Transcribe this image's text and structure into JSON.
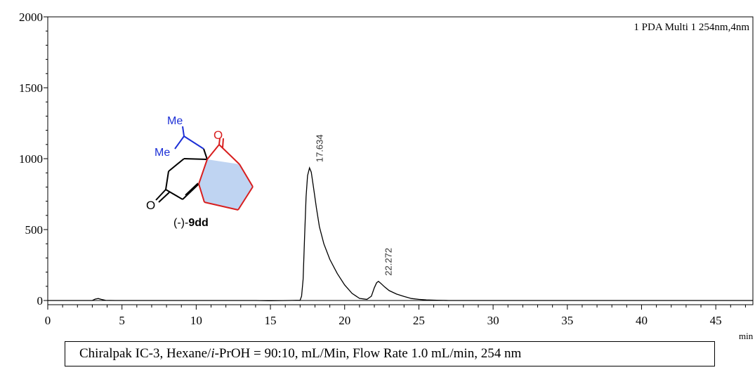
{
  "chart_data": {
    "type": "line",
    "title": "",
    "detector_label": "1 PDA Multi 1 254nm,4nm",
    "xlabel": "min",
    "ylabel": "",
    "xlim": [
      0,
      47.5
    ],
    "ylim": [
      -30,
      2000
    ],
    "x_ticks": [
      0,
      5,
      10,
      15,
      20,
      25,
      30,
      35,
      40,
      45
    ],
    "y_ticks": [
      0,
      500,
      1000,
      1500,
      2000
    ],
    "grid": false,
    "series": [
      {
        "values_xy": [
          [
            0,
            0
          ],
          [
            3.0,
            0
          ],
          [
            3.2,
            10
          ],
          [
            3.4,
            14
          ],
          [
            3.6,
            8
          ],
          [
            3.9,
            1
          ],
          [
            4.5,
            0
          ],
          [
            14.0,
            0
          ],
          [
            15.0,
            -2
          ],
          [
            16.2,
            0
          ],
          [
            17.0,
            2
          ],
          [
            17.1,
            30
          ],
          [
            17.2,
            150
          ],
          [
            17.3,
            450
          ],
          [
            17.4,
            730
          ],
          [
            17.5,
            880
          ],
          [
            17.634,
            935
          ],
          [
            17.75,
            905
          ],
          [
            17.9,
            800
          ],
          [
            18.1,
            650
          ],
          [
            18.3,
            520
          ],
          [
            18.6,
            400
          ],
          [
            19.0,
            290
          ],
          [
            19.5,
            190
          ],
          [
            20.0,
            110
          ],
          [
            20.5,
            50
          ],
          [
            21.0,
            15
          ],
          [
            21.5,
            8
          ],
          [
            21.8,
            30
          ],
          [
            22.0,
            90
          ],
          [
            22.15,
            125
          ],
          [
            22.272,
            135
          ],
          [
            22.45,
            120
          ],
          [
            22.7,
            95
          ],
          [
            23.0,
            70
          ],
          [
            23.5,
            45
          ],
          [
            24.0,
            28
          ],
          [
            24.5,
            14
          ],
          [
            25.0,
            8
          ],
          [
            25.5,
            4
          ],
          [
            26.2,
            2
          ],
          [
            27.0,
            0
          ],
          [
            47.5,
            0
          ]
        ]
      }
    ],
    "peaks": [
      {
        "rt": 17.634,
        "label": "17.634",
        "height": 935
      },
      {
        "rt": 22.272,
        "label": "22.272",
        "height": 135
      }
    ]
  },
  "molecule": {
    "label_prefix": "(-)-",
    "label_bold": "9dd",
    "me_top": "Me",
    "me_left": "Me",
    "oxygen_top": "O",
    "oxygen_left": "O",
    "colors": {
      "blue": "#1c2fd6",
      "red": "#d81e1e",
      "fill": "#bfd4f2"
    }
  },
  "conditions": {
    "part1": "Chiralpak IC-3, Hexane/",
    "italic": "i",
    "part2": "-PrOH = 90:10, mL/Min, Flow Rate 1.0 mL/min, 254 nm"
  }
}
